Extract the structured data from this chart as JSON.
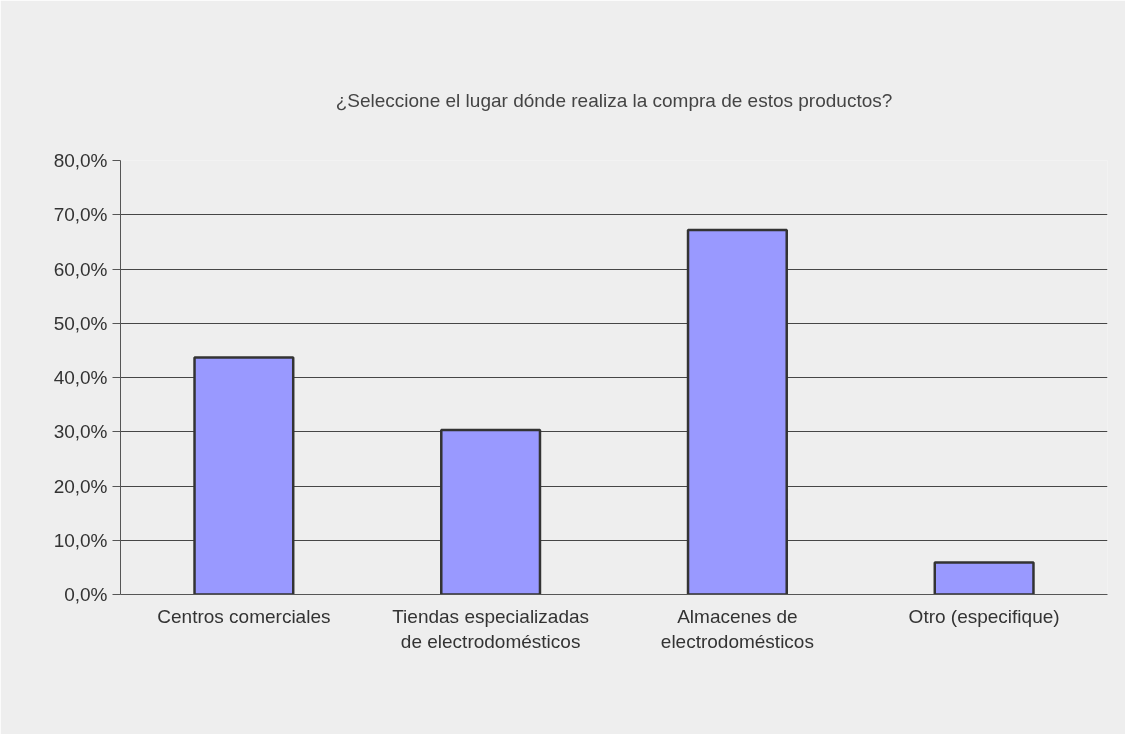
{
  "chart_data": {
    "type": "bar",
    "title": "¿Seleccione el lugar dónde realiza la compra de estos productos?",
    "categories": [
      "Centros comerciales",
      "Tiendas especializadas de electrodomésticos",
      "Almacenes de electrodomésticos",
      "Otro (especifique)"
    ],
    "values": [
      43.7,
      30.3,
      67.2,
      5.9
    ],
    "color": "#9999ff",
    "ylim": [
      0,
      80
    ],
    "yticks": [
      {
        "value": 0,
        "label": "0,0%"
      },
      {
        "value": 10,
        "label": "10,0%"
      },
      {
        "value": 20,
        "label": "20,0%"
      },
      {
        "value": 30,
        "label": "30,0%"
      },
      {
        "value": 40,
        "label": "40,0%"
      },
      {
        "value": 50,
        "label": "50,0%"
      },
      {
        "value": 60,
        "label": "60,0%"
      },
      {
        "value": 70,
        "label": "70,0%"
      },
      {
        "value": 80,
        "label": "80,0%"
      }
    ],
    "grid": "y"
  }
}
